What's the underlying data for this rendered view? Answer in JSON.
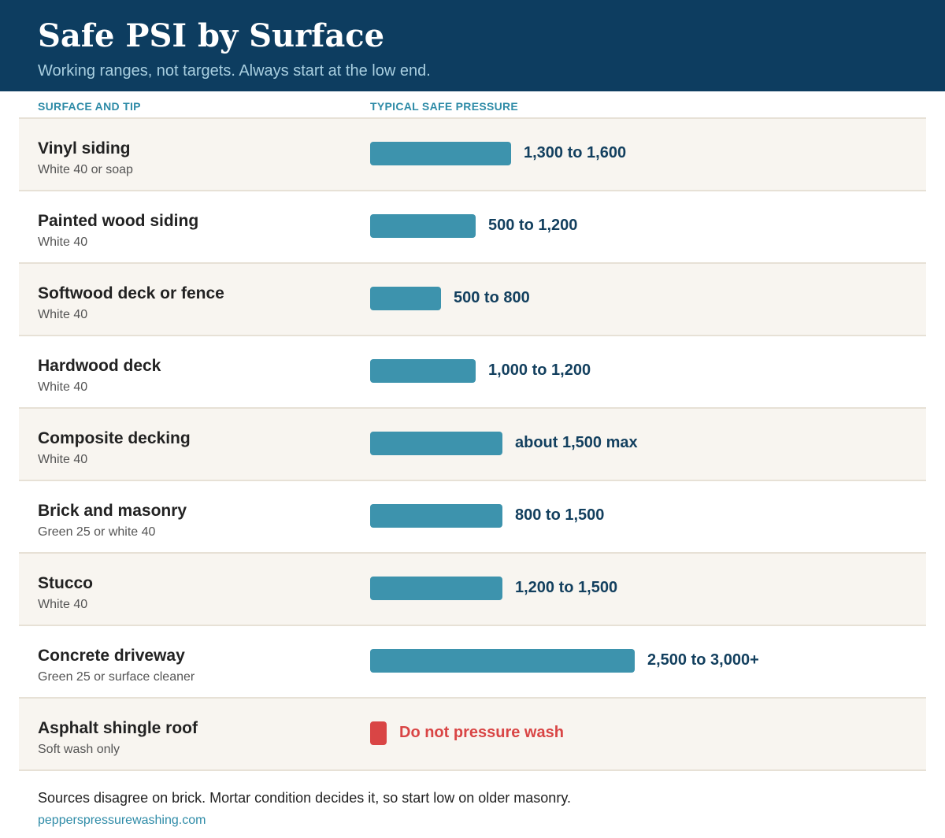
{
  "header": {
    "title": "Safe PSI by Surface",
    "subtitle": "Working ranges, not targets. Always start at the low end."
  },
  "columns": {
    "surface": "SURFACE AND TIP",
    "pressure": "TYPICAL SAFE PRESSURE"
  },
  "footer": {
    "note": "Sources disagree on brick. Mortar condition decides it, so start low on older masonry.",
    "source": "pepperspressurewashing.com"
  },
  "colors": {
    "header_bg": "#0d3d60",
    "bar": "#3d93ad",
    "warning": "#d94545",
    "accent": "#2e8ba7",
    "row_alt": "#f8f5f0"
  },
  "chart_data": {
    "type": "bar",
    "orientation": "horizontal",
    "title": "Safe PSI by Surface",
    "subtitle": "Working ranges, not targets. Always start at the low end.",
    "xlabel": "TYPICAL SAFE PRESSURE",
    "ylabel": "SURFACE AND TIP",
    "xlim": [
      0,
      3000
    ],
    "grid": false,
    "legend": "none",
    "categories": [
      "Vinyl siding",
      "Painted wood siding",
      "Softwood deck or fence",
      "Hardwood deck",
      "Composite decking",
      "Brick and masonry",
      "Stucco",
      "Concrete driveway",
      "Asphalt shingle roof"
    ],
    "tips": [
      "White 40 or soap",
      "White 40",
      "White 40",
      "White 40",
      "White 40",
      "Green 25 or white 40",
      "White 40",
      "Green 25 or surface cleaner",
      "Soft wash only"
    ],
    "values": [
      1600,
      1200,
      800,
      1200,
      1500,
      1500,
      1500,
      3000,
      0
    ],
    "labels": [
      "1,300 to 1,600",
      "500 to 1,200",
      "500 to 800",
      "1,000 to 1,200",
      "about 1,500 max",
      "800 to 1,500",
      "1,200 to 1,500",
      "2,500 to 3,000+",
      "Do not pressure wash"
    ],
    "warning": [
      false,
      false,
      false,
      false,
      false,
      false,
      false,
      false,
      true
    ]
  }
}
